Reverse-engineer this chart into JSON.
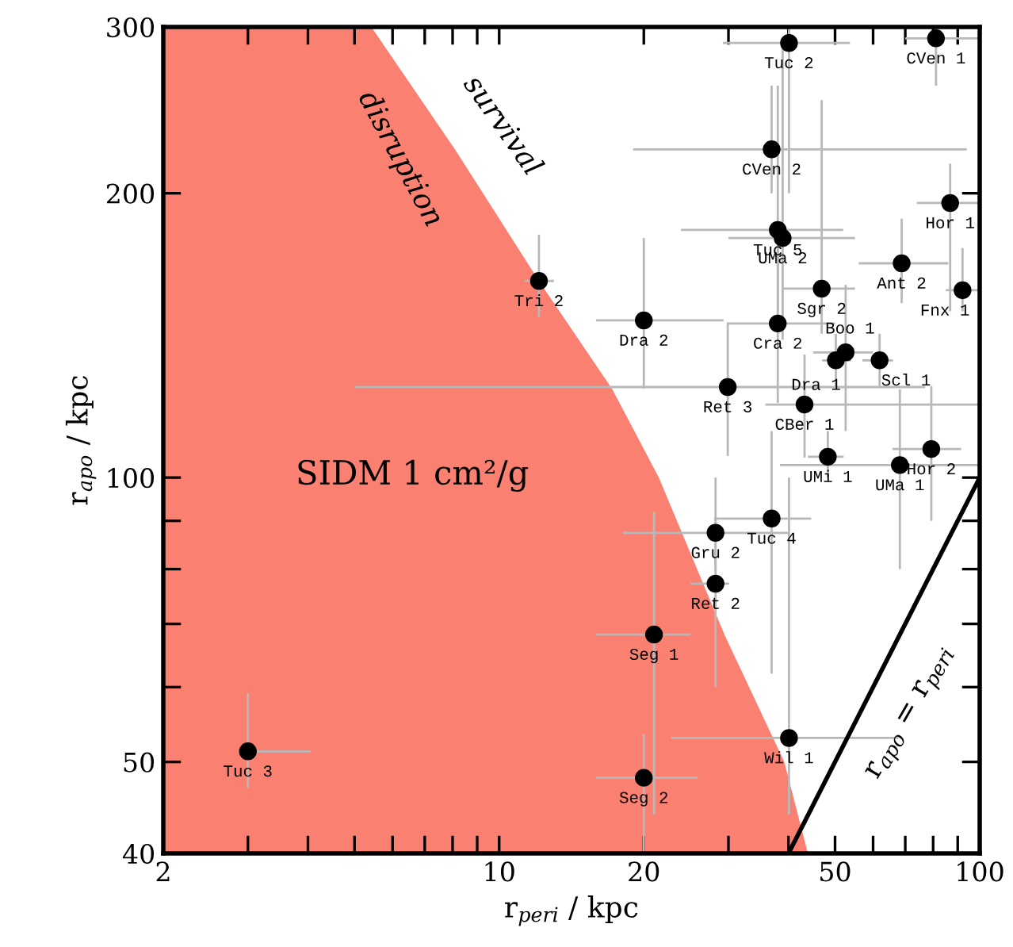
{
  "chart_data": {
    "type": "scatter",
    "xlabel": "r$_{peri}$ / kpc",
    "ylabel": "r$_{apo}$ / kpc",
    "log": "xy",
    "grid": false,
    "xlim": [
      2,
      100
    ],
    "ylim": [
      40,
      300
    ],
    "xticks": [
      2,
      {
        "value": 3,
        "label": null
      },
      {
        "value": 4,
        "label": null
      },
      {
        "value": 5,
        "label": null
      },
      {
        "value": 6,
        "label": null
      },
      {
        "value": 7,
        "label": null
      },
      {
        "value": 8,
        "label": null
      },
      {
        "value": 9,
        "label": null
      },
      10,
      20,
      {
        "value": 30,
        "label": null
      },
      {
        "value": 40,
        "label": null
      },
      50,
      {
        "value": 60,
        "label": null
      },
      {
        "value": 70,
        "label": null
      },
      {
        "value": 80,
        "label": null
      },
      {
        "value": 90,
        "label": null
      },
      100
    ],
    "yticks": [
      40,
      50,
      {
        "value": 60,
        "label": null
      },
      {
        "value": 70,
        "label": null
      },
      {
        "value": 80,
        "label": null
      },
      {
        "value": 90,
        "label": null
      },
      100,
      200,
      300
    ],
    "series": [
      {
        "type": "area",
        "color": "#fa8072",
        "x": [
          2,
          5.42,
          8.12,
          12.1,
          17.2,
          21.5,
          29.5,
          39.2,
          43.9
        ],
        "values": [
          300,
          300,
          222,
          161.5,
          124,
          100,
          68,
          50,
          40
        ]
      },
      {
        "type": "line",
        "color": "#000000",
        "x": [
          40,
          100
        ],
        "values": [
          40,
          100
        ]
      },
      {
        "color": "#000000",
        "marker": "circle",
        "x": [
          3.0,
          20,
          40.1,
          21.0,
          28.2,
          28.2,
          36.9,
          48.3,
          68.2,
          79.3,
          43.2,
          29.9,
          38.0,
          20,
          12.1,
          50.2,
          52.6,
          61.9,
          46.9,
          68.8,
          92.1,
          38.0,
          38.9,
          86.8,
          36.9,
          40.1,
          81.1
        ],
        "values": [
          51.3,
          48.1,
          53.0,
          68.2,
          77.2,
          87.4,
          90.5,
          105.2,
          103.1,
          107.2,
          119.5,
          124.7,
          145.6,
          146.7,
          161.5,
          133.1,
          135.7,
          133.1,
          158.5,
          168.6,
          157.9,
          182.9,
          179.3,
          195.3,
          222.6,
          288.5,
          291.8
        ],
        "xerrors": [
          [
            3.0,
            4.05
          ],
          [
            15.9,
            25.9
          ],
          [
            22.8,
            67.7
          ],
          [
            15.9,
            25.0
          ],
          [
            25.0,
            30.1
          ],
          [
            18.1,
            40.1
          ],
          [
            28.0,
            44.6
          ],
          [
            43.9,
            52.1
          ],
          [
            38.4,
            100
          ],
          [
            65.8,
            91.5
          ],
          [
            35.8,
            100
          ],
          [
            5.0,
            77
          ],
          [
            30,
            50
          ],
          [
            15.9,
            29.3
          ],
          [
            11.3,
            13.0
          ],
          [
            47,
            54
          ],
          [
            45,
            60
          ],
          [
            57,
            66
          ],
          [
            39,
            55
          ],
          [
            56,
            86
          ],
          [
            85,
            100
          ],
          [
            23.9,
            52
          ],
          [
            30,
            55
          ],
          [
            74,
            100
          ],
          [
            19,
            94
          ],
          [
            29.2,
            53.7
          ],
          [
            70,
            100
          ]
        ],
        "errors": [
          [
            46.9,
            59.1
          ],
          [
            40,
            53.5
          ],
          [
            44,
            100
          ],
          [
            44,
            92
          ],
          [
            60,
            90
          ],
          [
            80,
            100
          ],
          [
            62,
            112
          ],
          [
            100,
            112
          ],
          [
            80,
            124
          ],
          [
            90,
            125
          ],
          [
            105,
            135
          ],
          [
            105.4,
            146
          ],
          [
            120,
            175
          ],
          [
            124.2,
            179.3
          ],
          [
            147.8,
            180.8
          ],
          [
            125,
            142
          ],
          [
            112,
            160
          ],
          [
            125,
            142
          ],
          [
            142,
            251
          ],
          [
            153,
            188
          ],
          [
            150,
            175
          ],
          [
            150,
            260
          ],
          [
            140,
            290
          ],
          [
            150,
            215
          ],
          [
            200,
            260
          ],
          [
            200,
            300
          ],
          [
            260,
            300
          ]
        ]
      }
    ],
    "annotations": [
      "SIDM 1 cm²/g",
      "disruption",
      "survival",
      "r$_{apo}$ = r$_{peri}$",
      {
        "text": "Tuc 3",
        "x": 3.0,
        "y": 51.3
      },
      {
        "text": "Seg 2",
        "x": 20,
        "y": 48.1
      },
      {
        "text": "Wil 1",
        "x": 40.1,
        "y": 53.0
      },
      {
        "text": "Seg 1",
        "x": 21.0,
        "y": 68.2
      },
      {
        "text": "Ret 2",
        "x": 28.2,
        "y": 77.2
      },
      {
        "text": "Gru 2",
        "x": 28.2,
        "y": 87.4
      },
      {
        "text": "Tuc 4",
        "x": 36.9,
        "y": 90.5
      },
      {
        "text": "UMi 1",
        "x": 48.3,
        "y": 105.2
      },
      {
        "text": "UMa 1",
        "x": 68.2,
        "y": 103.1
      },
      {
        "text": "Hor 2",
        "x": 79.3,
        "y": 107.2
      },
      {
        "text": "CBer 1",
        "x": 43.2,
        "y": 119.5
      },
      {
        "text": "Ret 3",
        "x": 29.9,
        "y": 124.7
      },
      {
        "text": "Cra 2",
        "x": 38.0,
        "y": 145.6
      },
      {
        "text": "Dra 2",
        "x": 20,
        "y": 146.7
      },
      {
        "text": "Tri 2",
        "x": 12.1,
        "y": 161.5
      },
      {
        "text": "Dra 1",
        "x": 50.2,
        "y": 133.1
      },
      {
        "text": "Boo 1",
        "x": 52.6,
        "y": 135.7
      },
      {
        "text": "Scl 1",
        "x": 61.9,
        "y": 133.1
      },
      {
        "text": "Sgr 2",
        "x": 46.9,
        "y": 158.5
      },
      {
        "text": "Ant 2",
        "x": 68.8,
        "y": 168.6
      },
      {
        "text": "Fnx 1",
        "x": 92.1,
        "y": 157.9
      },
      {
        "text": "Tuc 5",
        "x": 38.0,
        "y": 182.9
      },
      {
        "text": "UMa 2",
        "x": 38.9,
        "y": 179.3
      },
      {
        "text": "Hor 1",
        "x": 86.8,
        "y": 195.3
      },
      {
        "text": "CVen 2",
        "x": 36.9,
        "y": 222.6
      },
      {
        "text": "Tuc 2",
        "x": 40.1,
        "y": 288.5
      },
      {
        "text": "CVen 1",
        "x": 81.1,
        "y": 291.8
      }
    ]
  }
}
